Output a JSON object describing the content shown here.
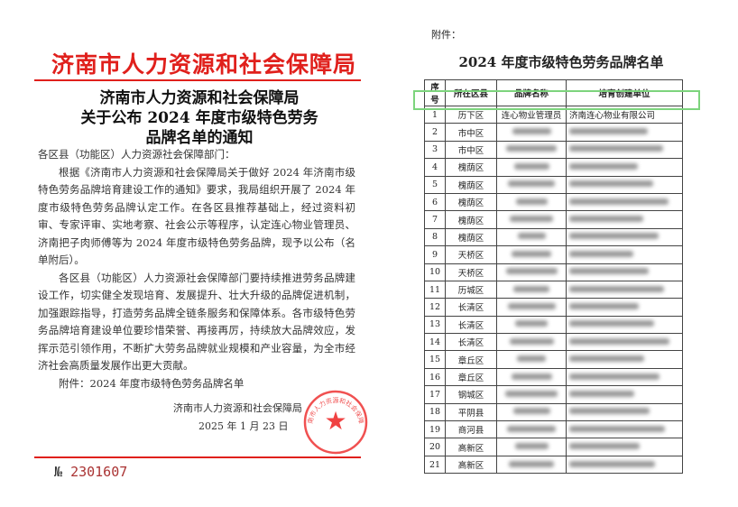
{
  "notice": {
    "header_red": "济南市人力资源和社会保障局",
    "title_lines": [
      "济南市人力资源和社会保障局",
      "关于公布 2024 年度市级特色劳务",
      "品牌名单的通知"
    ],
    "salutation": "各区县（功能区）人力资源社会保障部门：",
    "paragraph1": "根据《济南市人力资源和社会保障局关于做好 2024 年济南市级特色劳务品牌培育建设工作的通知》要求，我局组织开展了 2024 年度市级特色劳务品牌认定工作。在各区县推荐基础上，经过资料初审、专家评审、实地考察、社会公示等程序，认定连心物业管理员、济南把子肉师傅等为 2024 年度市级特色劳务品牌，现予以公布（名单附后）。",
    "paragraph2": "各区县（功能区）人力资源社会保障部门要持续推进劳务品牌建设工作，切实健全发现培育、发展提升、壮大升级的品牌促进机制，加强跟踪指导，打造劳务品牌全链条服务和保障体系。各市级特色劳务品牌培育建设单位要珍惜荣誉、再接再厉，持续放大品牌效应，发挥示范引领作用，不断扩大劳务品牌就业规模和产业容量，为全市经济社会高质量发展作出更大贡献。",
    "attachment": "附件：2024 年度市级特色劳务品牌名单",
    "signer": "济南市人力资源和社会保障局",
    "date": "2025 年 1 月 23 日",
    "stamp_text": "济南市人力资源和社会保障局",
    "serial_prefix": "№",
    "serial": "2301607"
  },
  "list": {
    "attachment_label": "附件：",
    "title": "2024 年度市级特色劳务品牌名单",
    "headers": [
      "序号",
      "所在区县",
      "品牌名称",
      "培育创建单位"
    ],
    "rows": [
      {
        "no": "1",
        "district": "历下区",
        "brand": "连心物业管理员",
        "unit": "济南连心物业有限公司",
        "highlighted": true
      },
      {
        "no": "2",
        "district": "市中区"
      },
      {
        "no": "3",
        "district": "市中区"
      },
      {
        "no": "4",
        "district": "槐荫区"
      },
      {
        "no": "5",
        "district": "槐荫区"
      },
      {
        "no": "6",
        "district": "槐荫区"
      },
      {
        "no": "7",
        "district": "槐荫区"
      },
      {
        "no": "8",
        "district": "槐荫区"
      },
      {
        "no": "9",
        "district": "天桥区"
      },
      {
        "no": "10",
        "district": "天桥区"
      },
      {
        "no": "11",
        "district": "历城区"
      },
      {
        "no": "12",
        "district": "长清区"
      },
      {
        "no": "13",
        "district": "长清区"
      },
      {
        "no": "14",
        "district": "长清区"
      },
      {
        "no": "15",
        "district": "章丘区"
      },
      {
        "no": "16",
        "district": "章丘区"
      },
      {
        "no": "17",
        "district": "钢城区"
      },
      {
        "no": "18",
        "district": "平阴县"
      },
      {
        "no": "19",
        "district": "商河县"
      },
      {
        "no": "20",
        "district": "高新区"
      },
      {
        "no": "21",
        "district": "高新区"
      }
    ],
    "highlight_color": "#7dd47d"
  }
}
